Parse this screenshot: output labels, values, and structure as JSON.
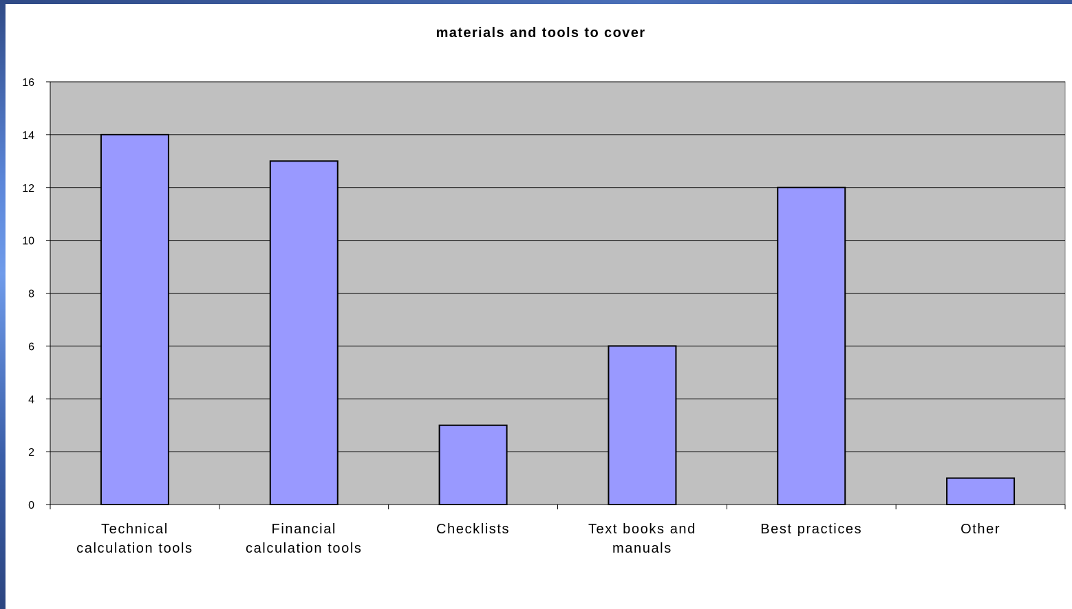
{
  "chart_data": {
    "type": "bar",
    "title": "materials and tools to cover",
    "xlabel": "",
    "ylabel": "",
    "ylim": [
      0,
      16
    ],
    "yticks": [
      0,
      2,
      4,
      6,
      8,
      10,
      12,
      14,
      16
    ],
    "grid": true,
    "legend": "none",
    "categories": [
      "Technical calculation tools",
      "Financial calculation tools",
      "Checklists",
      "Text books and manuals",
      "Best practices",
      "Other"
    ],
    "values": [
      14,
      13,
      3,
      6,
      12,
      1
    ],
    "colors": {
      "plot_background": "#c0c0c0",
      "bar_fill": "#9999ff",
      "bar_stroke": "#000000",
      "gridline": "#000000"
    }
  }
}
